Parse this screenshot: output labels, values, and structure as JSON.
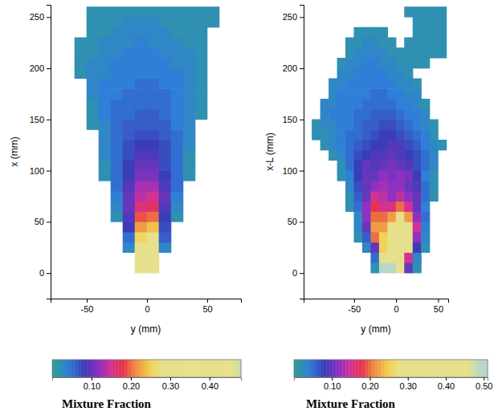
{
  "chart_data": [
    {
      "type": "heatmap",
      "xlabel": "y (mm)",
      "ylabel": "x (mm)",
      "xlim": [
        -80,
        78
      ],
      "ylim": [
        -25,
        262
      ],
      "xticks": [
        -50,
        0,
        50
      ],
      "yticks": [
        0,
        50,
        100,
        150,
        200,
        250
      ],
      "cell_x": [
        -75,
        -65,
        -55,
        -45,
        -35,
        -25,
        -15,
        -5,
        5,
        15,
        25,
        35,
        45,
        55,
        65,
        75
      ],
      "cell_y": [
        5,
        15,
        25,
        35,
        45,
        55,
        65,
        75,
        85,
        95,
        105,
        115,
        125,
        135,
        145,
        155,
        165,
        175,
        185,
        195,
        205,
        215,
        225,
        235,
        245,
        255
      ],
      "cells": [
        [
          null,
          null,
          null,
          null,
          null,
          null,
          null,
          0.42,
          0.42,
          null,
          null,
          null,
          null,
          null,
          null,
          null
        ],
        [
          null,
          null,
          null,
          null,
          null,
          null,
          null,
          0.35,
          0.38,
          null,
          null,
          null,
          null,
          null,
          null,
          null
        ],
        [
          null,
          null,
          null,
          null,
          null,
          null,
          0.03,
          0.3,
          0.32,
          0.03,
          null,
          null,
          null,
          null,
          null,
          null
        ],
        [
          null,
          null,
          null,
          null,
          null,
          null,
          0.05,
          0.26,
          0.28,
          0.06,
          null,
          null,
          null,
          null,
          null,
          null
        ],
        [
          null,
          null,
          null,
          null,
          null,
          null,
          0.08,
          0.22,
          0.24,
          0.07,
          null,
          null,
          null,
          null,
          null,
          null
        ],
        [
          null,
          null,
          null,
          null,
          null,
          0.02,
          0.09,
          0.19,
          0.2,
          0.08,
          0.02,
          null,
          null,
          null,
          null,
          null
        ],
        [
          null,
          null,
          null,
          null,
          null,
          0.03,
          0.1,
          0.16,
          0.17,
          0.09,
          0.03,
          null,
          null,
          null,
          null,
          null
        ],
        [
          null,
          null,
          null,
          null,
          null,
          0.04,
          0.1,
          0.14,
          0.15,
          0.1,
          0.04,
          null,
          null,
          null,
          null,
          null
        ],
        [
          null,
          null,
          null,
          null,
          null,
          0.05,
          0.09,
          0.13,
          0.13,
          0.09,
          0.05,
          null,
          null,
          null,
          null,
          null
        ],
        [
          null,
          null,
          null,
          null,
          0.02,
          0.05,
          0.08,
          0.11,
          0.11,
          0.08,
          0.05,
          0.02,
          null,
          null,
          null,
          null
        ],
        [
          null,
          null,
          null,
          null,
          0.02,
          0.05,
          0.08,
          0.1,
          0.1,
          0.07,
          0.05,
          0.02,
          null,
          null,
          null,
          null
        ],
        [
          null,
          null,
          null,
          null,
          0.03,
          0.05,
          0.07,
          0.09,
          0.09,
          0.07,
          0.05,
          0.02,
          null,
          null,
          null,
          null
        ],
        [
          null,
          null,
          null,
          null,
          0.03,
          0.05,
          0.07,
          0.08,
          0.08,
          0.07,
          0.05,
          0.03,
          null,
          null,
          null,
          null
        ],
        [
          null,
          null,
          null,
          null,
          0.03,
          0.05,
          0.06,
          0.07,
          0.07,
          0.06,
          0.05,
          0.03,
          null,
          null,
          null,
          null
        ],
        [
          null,
          null,
          null,
          0.02,
          0.03,
          0.05,
          0.06,
          0.06,
          0.06,
          0.06,
          0.04,
          0.03,
          null,
          null,
          null,
          null
        ],
        [
          null,
          null,
          null,
          0.02,
          0.04,
          0.05,
          0.05,
          0.06,
          0.06,
          0.05,
          0.04,
          0.03,
          0.02,
          null,
          null,
          null
        ],
        [
          null,
          null,
          null,
          0.02,
          0.04,
          0.05,
          0.05,
          0.05,
          0.05,
          0.05,
          0.04,
          0.03,
          0.02,
          null,
          null,
          null
        ],
        [
          null,
          null,
          null,
          0.03,
          0.04,
          0.04,
          0.05,
          0.05,
          0.05,
          0.05,
          0.04,
          0.03,
          0.02,
          null,
          null,
          null
        ],
        [
          null,
          null,
          null,
          0.03,
          0.04,
          0.04,
          0.04,
          0.05,
          0.05,
          0.04,
          0.04,
          0.03,
          0.02,
          null,
          null,
          null
        ],
        [
          null,
          null,
          0.02,
          0.03,
          0.03,
          0.04,
          0.04,
          0.04,
          0.04,
          0.04,
          0.04,
          0.03,
          0.02,
          null,
          null,
          null
        ],
        [
          null,
          null,
          0.02,
          0.03,
          0.03,
          0.04,
          0.04,
          0.04,
          0.04,
          0.04,
          0.03,
          0.03,
          0.02,
          null,
          null,
          null
        ],
        [
          null,
          null,
          0.02,
          0.02,
          0.03,
          0.03,
          0.04,
          0.04,
          0.04,
          0.03,
          0.03,
          0.03,
          0.02,
          null,
          null,
          null
        ],
        [
          null,
          null,
          0.02,
          0.02,
          0.03,
          0.03,
          0.03,
          0.04,
          0.03,
          0.03,
          0.03,
          0.02,
          0.02,
          null,
          null,
          null
        ],
        [
          null,
          null,
          null,
          0.02,
          0.02,
          0.03,
          0.03,
          0.03,
          0.03,
          0.03,
          0.02,
          0.02,
          0.02,
          null,
          null,
          null
        ],
        [
          null,
          null,
          null,
          0.02,
          0.02,
          0.02,
          0.03,
          0.03,
          0.03,
          0.02,
          0.02,
          0.02,
          0.02,
          0.02,
          null,
          null
        ],
        [
          null,
          null,
          null,
          0.02,
          0.02,
          0.02,
          0.02,
          0.02,
          0.02,
          0.02,
          0.02,
          0.02,
          0.02,
          0.02,
          null,
          null
        ]
      ],
      "colorbar": {
        "label": "Mixture Fraction",
        "range": [
          0,
          0.48
        ],
        "ticks": [
          {
            "value": 0.1,
            "label": "0.10"
          },
          {
            "value": 0.2,
            "label": "0.20"
          },
          {
            "value": 0.3,
            "label": "0.30"
          },
          {
            "value": 0.4,
            "label": "0.40"
          }
        ]
      }
    },
    {
      "type": "heatmap",
      "xlabel": "y (mm)",
      "ylabel": "x-L (mm)",
      "xlim": [
        -110,
        62
      ],
      "ylim": [
        -25,
        262
      ],
      "xticks": [
        -50,
        0,
        50
      ],
      "yticks": [
        0,
        50,
        100,
        150,
        200,
        250
      ],
      "cell_x": [
        -105,
        -95,
        -85,
        -75,
        -65,
        -55,
        -45,
        -35,
        -25,
        -15,
        -5,
        5,
        15,
        25,
        35,
        45,
        55
      ],
      "cell_y": [
        5,
        15,
        25,
        35,
        45,
        55,
        65,
        75,
        85,
        95,
        105,
        115,
        125,
        135,
        145,
        155,
        165,
        175,
        185,
        195,
        205,
        215,
        225,
        235,
        245,
        255
      ],
      "cells": [
        [
          null,
          null,
          null,
          null,
          null,
          null,
          null,
          null,
          0.02,
          0.5,
          0.5,
          0.3,
          0.1,
          0.02,
          null,
          null,
          null
        ],
        [
          null,
          null,
          null,
          null,
          null,
          null,
          null,
          null,
          0.05,
          0.35,
          0.4,
          0.35,
          0.15,
          0.03,
          null,
          null,
          null
        ],
        [
          null,
          null,
          null,
          null,
          null,
          null,
          null,
          0.03,
          0.1,
          0.25,
          0.3,
          0.42,
          0.3,
          0.08,
          0.02,
          null,
          null
        ],
        [
          null,
          null,
          null,
          null,
          null,
          null,
          0.02,
          0.06,
          0.2,
          0.25,
          0.3,
          0.42,
          0.35,
          0.12,
          0.03,
          null,
          null
        ],
        [
          null,
          null,
          null,
          null,
          null,
          null,
          0.03,
          0.1,
          0.22,
          0.22,
          0.28,
          0.38,
          0.3,
          0.15,
          0.04,
          null,
          null
        ],
        [
          null,
          null,
          null,
          null,
          null,
          null,
          0.03,
          0.12,
          0.2,
          0.2,
          0.22,
          0.3,
          0.22,
          0.12,
          0.05,
          null,
          null
        ],
        [
          null,
          null,
          null,
          null,
          null,
          0.02,
          0.05,
          0.12,
          0.18,
          0.15,
          0.16,
          0.2,
          0.15,
          0.1,
          0.04,
          null,
          null
        ],
        [
          null,
          null,
          null,
          null,
          null,
          0.02,
          0.06,
          0.1,
          0.15,
          0.14,
          0.12,
          0.14,
          0.12,
          0.1,
          0.05,
          0.02,
          null
        ],
        [
          null,
          null,
          null,
          null,
          null,
          0.03,
          0.07,
          0.1,
          0.12,
          0.13,
          0.12,
          0.12,
          0.1,
          0.09,
          0.05,
          0.02,
          null
        ],
        [
          null,
          null,
          null,
          null,
          0.02,
          0.04,
          0.08,
          0.1,
          0.1,
          0.12,
          0.11,
          0.12,
          0.11,
          0.08,
          0.04,
          0.02,
          null
        ],
        [
          null,
          null,
          null,
          null,
          0.02,
          0.05,
          0.08,
          0.1,
          0.09,
          0.1,
          0.11,
          0.1,
          0.09,
          0.07,
          0.05,
          0.03,
          null
        ],
        [
          null,
          null,
          null,
          0.02,
          0.03,
          0.05,
          0.07,
          0.08,
          0.09,
          0.09,
          0.1,
          0.09,
          0.08,
          0.07,
          0.05,
          0.03,
          null
        ],
        [
          null,
          null,
          0.02,
          0.03,
          0.04,
          0.05,
          0.06,
          0.07,
          0.08,
          0.08,
          0.09,
          0.09,
          0.07,
          0.06,
          0.04,
          0.03,
          0.02
        ],
        [
          null,
          0.02,
          0.02,
          0.03,
          0.04,
          0.05,
          0.05,
          0.06,
          0.07,
          0.08,
          0.08,
          0.07,
          0.06,
          0.05,
          0.04,
          0.02,
          null
        ],
        [
          null,
          0.02,
          0.03,
          0.03,
          0.04,
          0.04,
          0.05,
          0.06,
          0.06,
          0.07,
          0.07,
          0.06,
          0.05,
          0.04,
          0.03,
          0.02,
          null
        ],
        [
          null,
          null,
          0.03,
          0.04,
          0.04,
          0.04,
          0.05,
          0.05,
          0.06,
          0.06,
          0.06,
          0.05,
          0.04,
          0.04,
          0.03,
          null,
          null
        ],
        [
          null,
          null,
          0.03,
          0.03,
          0.04,
          0.04,
          0.04,
          0.05,
          0.05,
          0.05,
          0.05,
          0.04,
          0.04,
          0.03,
          0.02,
          null,
          null
        ],
        [
          null,
          null,
          null,
          0.03,
          0.04,
          0.04,
          0.04,
          0.04,
          0.05,
          0.05,
          0.04,
          0.04,
          0.03,
          0.03,
          null,
          null,
          null
        ],
        [
          null,
          null,
          null,
          0.03,
          0.03,
          0.04,
          0.04,
          0.04,
          0.04,
          0.04,
          0.04,
          0.03,
          0.03,
          0.02,
          null,
          null,
          null
        ],
        [
          null,
          null,
          null,
          null,
          0.03,
          0.03,
          0.04,
          0.04,
          0.04,
          0.04,
          0.03,
          0.03,
          0.02,
          null,
          null,
          null,
          null
        ],
        [
          null,
          null,
          null,
          null,
          0.02,
          0.03,
          0.03,
          0.04,
          0.04,
          0.03,
          0.03,
          0.02,
          0.02,
          0.02,
          0.02,
          null,
          null
        ],
        [
          null,
          null,
          null,
          null,
          null,
          0.02,
          0.03,
          0.03,
          0.03,
          0.03,
          0.02,
          0.02,
          0.02,
          0.02,
          0.02,
          0.02,
          0.02
        ],
        [
          null,
          null,
          null,
          null,
          null,
          0.02,
          0.02,
          0.03,
          0.03,
          0.02,
          0.02,
          null,
          0.02,
          0.02,
          0.02,
          0.02,
          0.02
        ],
        [
          null,
          null,
          null,
          null,
          null,
          null,
          0.02,
          0.02,
          0.02,
          0.02,
          null,
          null,
          null,
          0.02,
          0.02,
          0.02,
          0.02
        ],
        [
          null,
          null,
          null,
          null,
          null,
          null,
          null,
          null,
          null,
          null,
          null,
          null,
          null,
          0.02,
          0.02,
          0.02,
          0.02
        ],
        [
          null,
          null,
          null,
          null,
          null,
          null,
          null,
          null,
          null,
          null,
          null,
          null,
          0.02,
          0.02,
          0.02,
          0.02,
          0.02
        ]
      ],
      "colorbar": {
        "label": "Mixture Fraction",
        "range": [
          0,
          0.51
        ],
        "ticks": [
          {
            "value": 0.1,
            "label": "0.10"
          },
          {
            "value": 0.2,
            "label": "0.20"
          },
          {
            "value": 0.3,
            "label": "0.30"
          },
          {
            "value": 0.4,
            "label": "0.40"
          },
          {
            "value": 0.5,
            "label": "0.50"
          }
        ]
      }
    }
  ]
}
